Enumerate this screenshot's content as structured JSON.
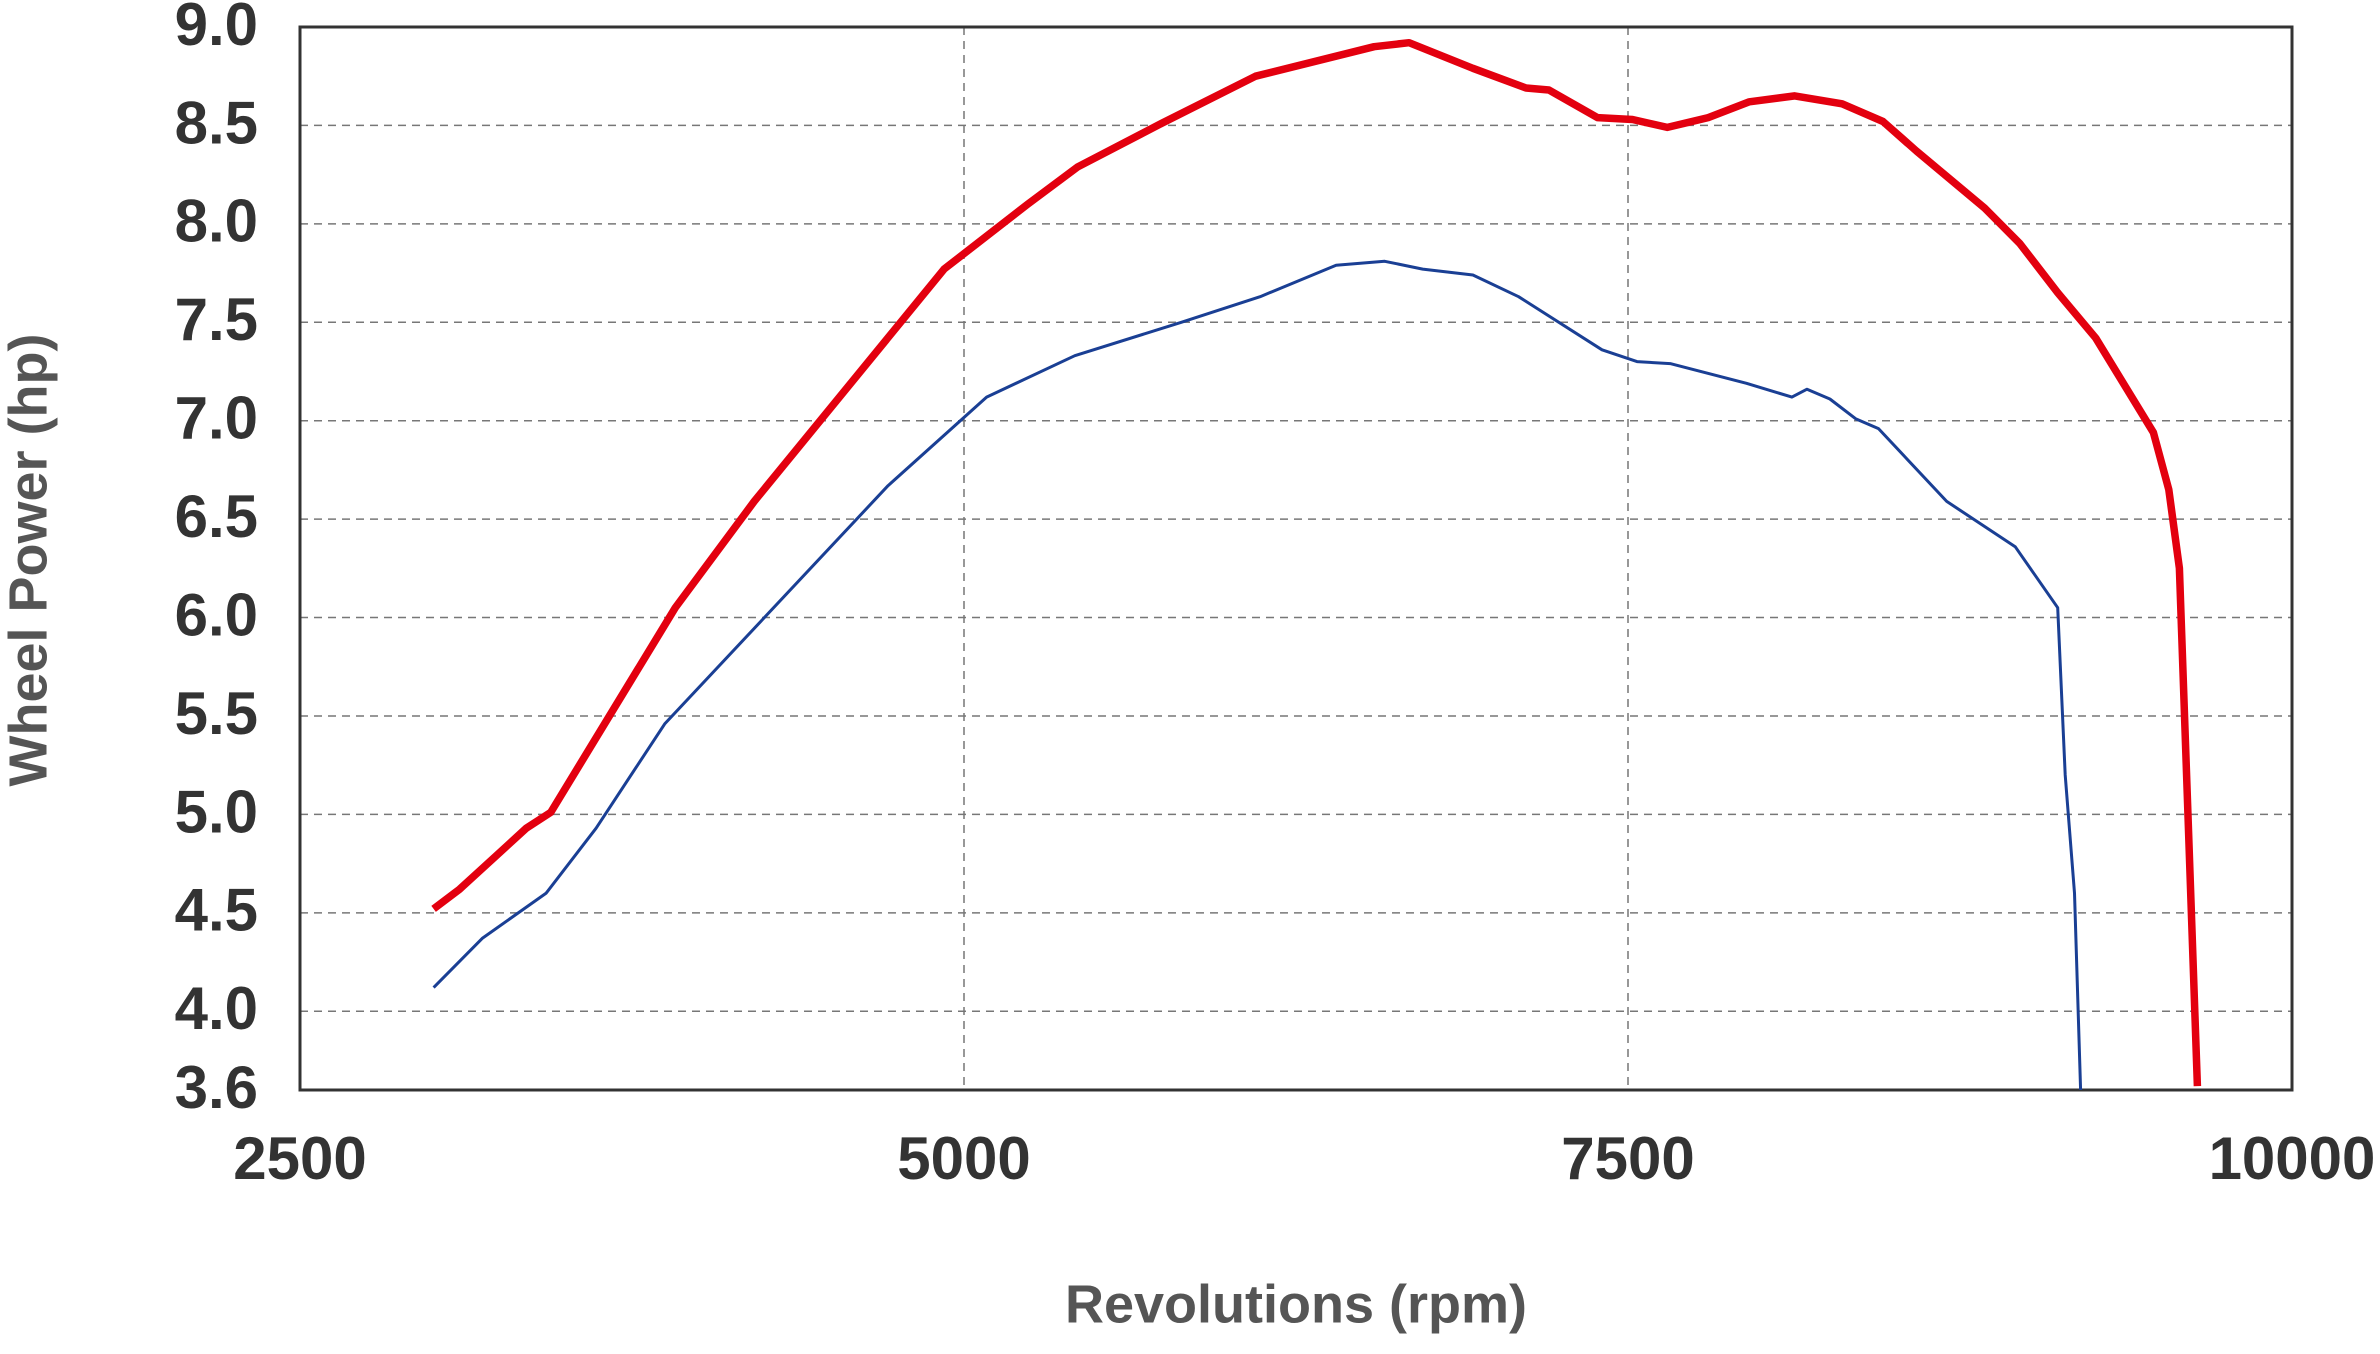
{
  "chart_data": {
    "type": "line",
    "x_label": "Revolutions (rpm)",
    "y_label": "Wheel Power (hp)",
    "xlim": [
      2500,
      10000
    ],
    "xticks": [
      2500,
      5000,
      7500,
      10000
    ],
    "ylim": [
      3.6,
      9.0
    ],
    "yticks": [
      3.6,
      {
        "value": 4,
        "label": "4.0"
      },
      4.5,
      {
        "value": 5,
        "label": "5.0"
      },
      5.5,
      {
        "value": 6,
        "label": "6.0"
      },
      6.5,
      {
        "value": 7,
        "label": "7.0"
      },
      7.5,
      {
        "value": 8,
        "label": "8.0"
      },
      8.5,
      {
        "value": 9,
        "label": "9.0"
      }
    ],
    "grid": true,
    "series": [
      {
        "color": "#e3000f",
        "width": 7.5,
        "x": [
          3003,
          3101,
          3198,
          3352,
          3444,
          3913,
          4210,
          4925,
          5240,
          5429,
          5743,
          6098,
          6544,
          6676,
          6916,
          7116,
          7202,
          7385,
          7517,
          7648,
          7802,
          7957,
          8128,
          8306,
          8460,
          8586,
          8843,
          8975,
          9118,
          9261,
          9478,
          9536,
          9576,
          9644
        ],
        "values": [
          4.52,
          4.62,
          4.74,
          4.93,
          5.01,
          6.05,
          6.59,
          7.77,
          8.1,
          8.29,
          8.51,
          8.75,
          8.9,
          8.92,
          8.79,
          8.69,
          8.68,
          8.54,
          8.53,
          8.49,
          8.54,
          8.62,
          8.65,
          8.61,
          8.52,
          8.37,
          8.08,
          7.9,
          7.65,
          7.42,
          6.94,
          6.65,
          6.25,
          3.62
        ]
      },
      {
        "color": "#1a3f94",
        "width": 3,
        "x": [
          3003,
          3186,
          3427,
          3615,
          3873,
          4714,
          5085,
          5417,
          5818,
          6115,
          6401,
          6584,
          6727,
          6916,
          7088,
          7402,
          7534,
          7659,
          7946,
          8117,
          8174,
          8260,
          8357,
          8443,
          8700,
          8958,
          9118,
          9146,
          9181,
          9204
        ],
        "values": [
          4.12,
          4.37,
          4.6,
          4.93,
          5.46,
          6.67,
          7.12,
          7.33,
          7.5,
          7.63,
          7.79,
          7.81,
          7.77,
          7.74,
          7.63,
          7.36,
          7.3,
          7.29,
          7.19,
          7.12,
          7.16,
          7.11,
          7.01,
          6.96,
          6.59,
          6.36,
          6.05,
          5.2,
          4.6,
          3.6
        ]
      }
    ]
  }
}
